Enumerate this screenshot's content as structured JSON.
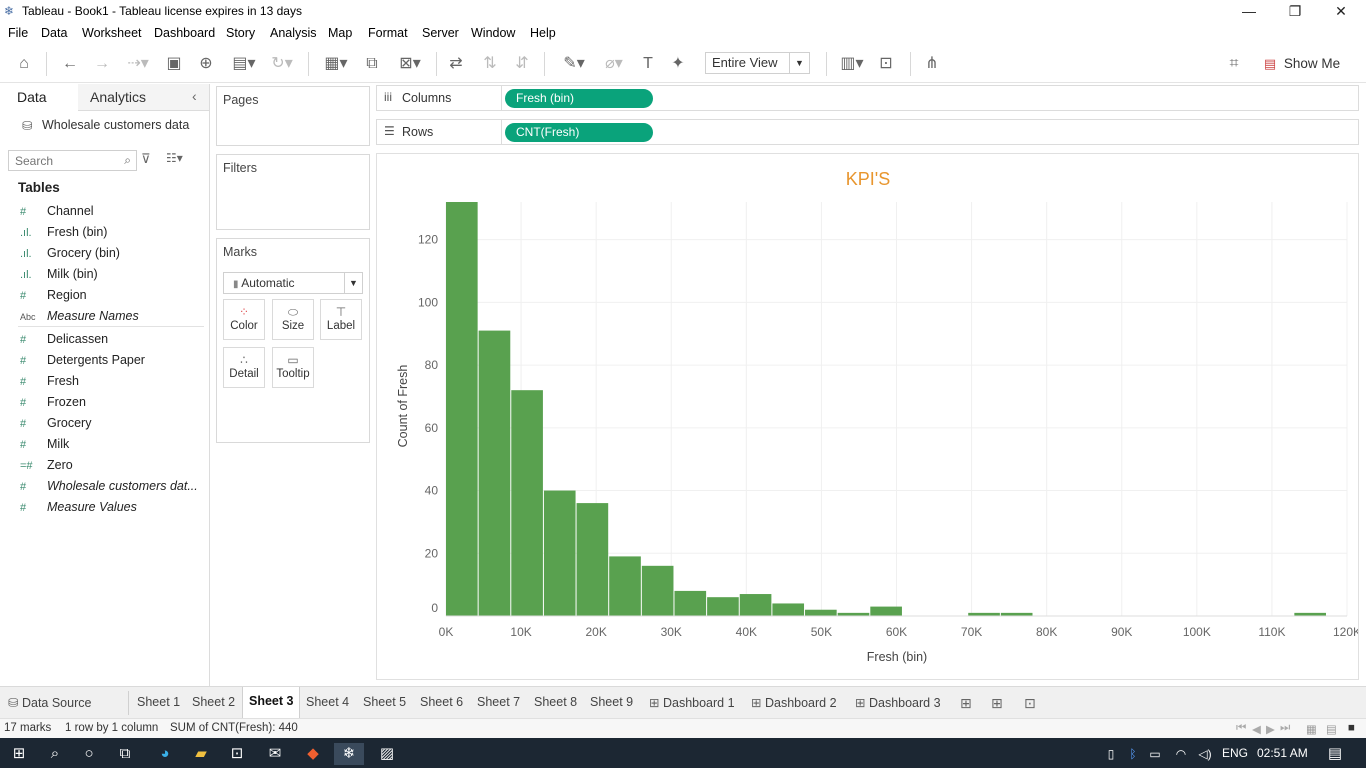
{
  "window": {
    "title": "Tableau - Book1 - Tableau license expires in 13 days",
    "app_icon": "tableau-icon"
  },
  "menu": [
    "File",
    "Data",
    "Worksheet",
    "Dashboard",
    "Story",
    "Analysis",
    "Map",
    "Format",
    "Server",
    "Window",
    "Help"
  ],
  "toolbar": {
    "view_select": "Entire View",
    "show_me": "Show Me"
  },
  "data_pane": {
    "tab_data": "Data",
    "tab_analytics": "Analytics",
    "datasource": "Wholesale customers data",
    "search_placeholder": "Search",
    "tables_header": "Tables",
    "fields": [
      {
        "icon": "#",
        "label": "Channel"
      },
      {
        "icon": "bin",
        "label": "Fresh (bin)"
      },
      {
        "icon": "bin",
        "label": "Grocery (bin)"
      },
      {
        "icon": "bin",
        "label": "Milk (bin)"
      },
      {
        "icon": "#",
        "label": "Region"
      },
      {
        "icon": "Abc",
        "label": "Measure Names"
      },
      {
        "icon": "#",
        "label": "Delicassen"
      },
      {
        "icon": "#",
        "label": "Detergents Paper"
      },
      {
        "icon": "#",
        "label": "Fresh"
      },
      {
        "icon": "#",
        "label": "Frozen"
      },
      {
        "icon": "#",
        "label": "Grocery"
      },
      {
        "icon": "#",
        "label": "Milk"
      },
      {
        "icon": "=#",
        "label": "Zero"
      },
      {
        "icon": "#",
        "label": "Wholesale customers dat..."
      },
      {
        "icon": "#",
        "label": "Measure Values"
      }
    ]
  },
  "cards": {
    "pages": "Pages",
    "filters": "Filters",
    "marks": "Marks",
    "marks_type": "Automatic",
    "mark_buttons": [
      "Color",
      "Size",
      "Label",
      "Detail",
      "Tooltip"
    ]
  },
  "shelves": {
    "columns_label": "Columns",
    "columns_pill": "Fresh (bin)",
    "rows_label": "Rows",
    "rows_pill": "CNT(Fresh)"
  },
  "chart_data": {
    "type": "bar",
    "title": "KPI'S",
    "xlabel": "Fresh (bin)",
    "ylabel": "Count of Fresh",
    "bar_color": "#59a14f",
    "title_color": "#e8962e",
    "x_ticks": [
      "0K",
      "10K",
      "20K",
      "30K",
      "40K",
      "50K",
      "60K",
      "70K",
      "80K",
      "90K",
      "100K",
      "110K",
      "120K"
    ],
    "y_ticks": [
      "0",
      "20",
      "40",
      "60",
      "80",
      "100",
      "120"
    ],
    "xlim": [
      0,
      120000
    ],
    "ylim": [
      0,
      132
    ],
    "bin_width": 4347,
    "x": [
      0,
      4347,
      8694,
      13041,
      17388,
      21735,
      26082,
      30429,
      34776,
      39123,
      43470,
      47817,
      52164,
      56511,
      69552,
      73899,
      112988
    ],
    "values": [
      132,
      91,
      72,
      40,
      36,
      19,
      16,
      8,
      6,
      7,
      4,
      2,
      1,
      3,
      1,
      1,
      1
    ],
    "grid": true
  },
  "sheet_tabs": {
    "data_source": "Data Source",
    "sheets": [
      "Sheet 1",
      "Sheet 2",
      "Sheet 3",
      "Sheet 4",
      "Sheet 5",
      "Sheet 6",
      "Sheet 7",
      "Sheet 8",
      "Sheet 9"
    ],
    "active": "Sheet 3",
    "dashboards": [
      "Dashboard 1",
      "Dashboard 2",
      "Dashboard 3"
    ]
  },
  "status": {
    "marks": "17 marks",
    "dims": "1 row by 1 column",
    "sum": "SUM of CNT(Fresh): 440"
  },
  "taskbar": {
    "lang": "ENG",
    "time": "02:51 AM"
  }
}
